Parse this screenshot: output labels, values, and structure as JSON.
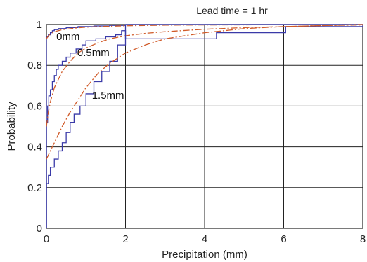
{
  "chart_data": {
    "type": "line",
    "title": "Lead time  = 1 hr",
    "xlabel": "Precipitation (mm)",
    "ylabel": "Probability",
    "xlim": [
      0,
      8
    ],
    "ylim": [
      0,
      1
    ],
    "xticks": [
      "0",
      "2",
      "4",
      "6",
      "8"
    ],
    "yticks": [
      "0",
      "0.2",
      "0.4",
      "0.6",
      "0.8",
      "1"
    ],
    "grid": true,
    "annotations": [
      {
        "text": "0mm",
        "x": 0.25,
        "y": 0.925
      },
      {
        "text": "0.5mm",
        "x": 0.78,
        "y": 0.845
      },
      {
        "text": "1.5mm",
        "x": 1.15,
        "y": 0.635
      }
    ],
    "series": [
      {
        "style": "empirical-step",
        "color": "#3a3aa8",
        "x": [
          0,
          0.05,
          0.1,
          0.15,
          0.2,
          0.3,
          0.5,
          0.8,
          1.2,
          1.6,
          2.0,
          8.0
        ],
        "y": [
          0.94,
          0.95,
          0.96,
          0.97,
          0.975,
          0.98,
          0.985,
          0.99,
          0.993,
          0.996,
          1.0,
          1.0
        ]
      },
      {
        "style": "fitted-dashdot",
        "color": "#d05a28",
        "x": [
          0,
          0.05,
          0.1,
          0.2,
          0.4,
          0.7,
          1.0,
          1.5,
          2.0,
          3.0,
          4.0,
          6.0,
          8.0
        ],
        "y": [
          0.93,
          0.945,
          0.955,
          0.965,
          0.975,
          0.982,
          0.987,
          0.991,
          0.994,
          0.997,
          0.998,
          0.999,
          1.0
        ]
      },
      {
        "style": "empirical-step",
        "color": "#3a3aa8",
        "x": [
          0,
          0.03,
          0.06,
          0.1,
          0.15,
          0.2,
          0.25,
          0.3,
          0.4,
          0.5,
          0.6,
          0.75,
          0.9,
          1.0,
          1.25,
          1.5,
          1.75,
          1.9,
          2.0,
          4.3,
          6.05,
          8.0
        ],
        "y": [
          0.52,
          0.6,
          0.65,
          0.68,
          0.72,
          0.75,
          0.78,
          0.8,
          0.82,
          0.84,
          0.86,
          0.88,
          0.9,
          0.92,
          0.93,
          0.94,
          0.95,
          0.97,
          0.93,
          0.96,
          0.99,
          1.0
        ]
      },
      {
        "style": "fitted-dashdot",
        "color": "#d05a28",
        "x": [
          0,
          0.05,
          0.1,
          0.2,
          0.4,
          0.6,
          0.8,
          1.0,
          1.3,
          1.6,
          2.0,
          2.5,
          3.0,
          4.0,
          5.0,
          6.0,
          7.0,
          8.0
        ],
        "y": [
          0.5,
          0.57,
          0.62,
          0.69,
          0.77,
          0.82,
          0.86,
          0.885,
          0.91,
          0.93,
          0.945,
          0.957,
          0.965,
          0.977,
          0.985,
          0.99,
          0.995,
          0.998
        ]
      },
      {
        "style": "empirical-step",
        "color": "#3a3aa8",
        "x": [
          0,
          0.05,
          0.1,
          0.2,
          0.3,
          0.4,
          0.5,
          0.6,
          0.7,
          0.85,
          1.0,
          1.2,
          1.4,
          1.6,
          1.8,
          2.0,
          8.0
        ],
        "y": [
          0.22,
          0.26,
          0.3,
          0.34,
          0.38,
          0.42,
          0.47,
          0.52,
          0.56,
          0.6,
          0.66,
          0.72,
          0.77,
          0.82,
          0.9,
          1.0,
          1.0
        ]
      },
      {
        "style": "fitted-dashdot",
        "color": "#d05a28",
        "x": [
          0,
          0.1,
          0.2,
          0.4,
          0.6,
          0.8,
          1.0,
          1.3,
          1.6,
          2.0,
          2.5,
          3.0,
          4.0,
          5.0,
          6.0,
          7.0,
          8.0
        ],
        "y": [
          0.34,
          0.38,
          0.42,
          0.5,
          0.57,
          0.63,
          0.69,
          0.76,
          0.81,
          0.86,
          0.9,
          0.93,
          0.96,
          0.98,
          0.99,
          0.995,
          1.0
        ]
      }
    ]
  }
}
